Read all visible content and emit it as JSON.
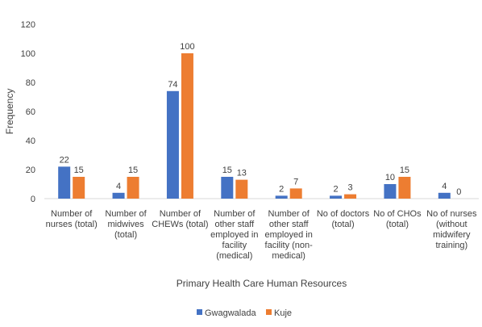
{
  "chart_data": {
    "type": "bar",
    "title": "",
    "xlabel": "Primary Health Care Human Resources",
    "ylabel": "Frequency",
    "ylim": [
      0,
      120
    ],
    "yticks": [
      0,
      20,
      40,
      60,
      80,
      100,
      120
    ],
    "grid": false,
    "legend_position": "bottom",
    "categories": [
      [
        "Number of",
        "nurses (total)"
      ],
      [
        "Number of",
        "midwives",
        "(total)"
      ],
      [
        "Number of",
        "CHEWs (total)"
      ],
      [
        "Number of",
        "other staff",
        "employed in",
        "facility",
        "(medical)"
      ],
      [
        "Number of",
        "other staff",
        "employed in",
        "facility (non-",
        "medical)"
      ],
      [
        "No of doctors",
        "(total)"
      ],
      [
        "No of CHOs",
        "(total)"
      ],
      [
        "No of nurses",
        "(without",
        "midwifery",
        "training)"
      ]
    ],
    "series": [
      {
        "name": "Gwagwalada",
        "color": "#4472C4",
        "values": [
          22,
          4,
          74,
          15,
          2,
          2,
          10,
          4
        ]
      },
      {
        "name": "Kuje",
        "color": "#ED7D31",
        "values": [
          15,
          15,
          100,
          13,
          7,
          3,
          15,
          0
        ]
      }
    ]
  }
}
